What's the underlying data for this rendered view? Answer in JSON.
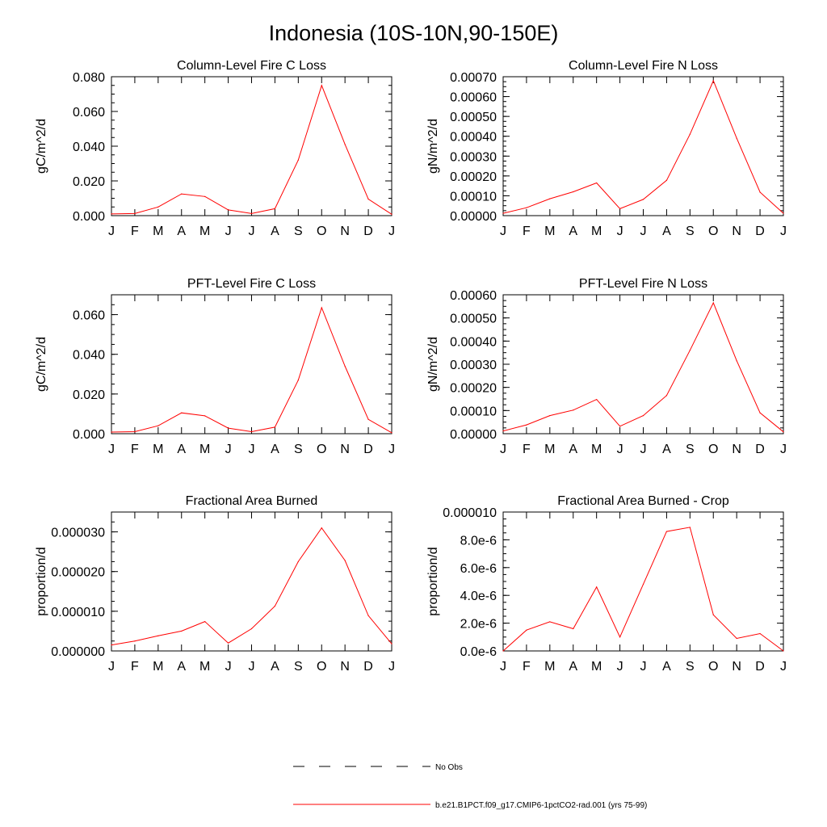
{
  "figure": {
    "title": "Indonesia (10S-10N,90-150E)",
    "legend": [
      {
        "label": "No Obs",
        "style": "dashed",
        "color": "#000000"
      },
      {
        "label": "b.e21.B1PCT.f09_g17.CMIP6-1pctCO2-rad.001 (yrs 75-99)",
        "style": "solid",
        "color": "#ff0000"
      }
    ]
  },
  "chart_data": [
    {
      "type": "line",
      "title": "Column-Level Fire C Loss",
      "ylabel": "gC/m^2/d",
      "categories": [
        "J",
        "F",
        "M",
        "A",
        "M",
        "J",
        "J",
        "A",
        "S",
        "O",
        "N",
        "D",
        "J"
      ],
      "ylim": [
        0,
        0.08
      ],
      "yticks": [
        "0.000",
        "0.020",
        "0.040",
        "0.060",
        "0.080"
      ],
      "yminor_per_major": 4,
      "line_color": "#ff0000",
      "series": [
        {
          "values": [
            0.001,
            0.0012,
            0.005,
            0.0125,
            0.011,
            0.0033,
            0.0012,
            0.004,
            0.032,
            0.075,
            0.041,
            0.0095,
            0.0008
          ]
        }
      ]
    },
    {
      "type": "line",
      "title": "Column-Level Fire N Loss",
      "ylabel": "gN/m^2/d",
      "categories": [
        "J",
        "F",
        "M",
        "A",
        "M",
        "J",
        "J",
        "A",
        "S",
        "O",
        "N",
        "D",
        "J"
      ],
      "ylim": [
        0,
        0.0007
      ],
      "yticks": [
        "0.00000",
        "0.00010",
        "0.00020",
        "0.00030",
        "0.00040",
        "0.00050",
        "0.00060",
        "0.00070"
      ],
      "yminor_per_major": 4,
      "line_color": "#ff0000",
      "series": [
        {
          "values": [
            1.2e-05,
            4e-05,
            8.5e-05,
            0.00012,
            0.000165,
            3.5e-05,
            8.2e-05,
            0.000178,
            0.00041,
            0.00068,
            0.00039,
            0.000118,
            1.2e-05
          ]
        }
      ]
    },
    {
      "type": "line",
      "title": "PFT-Level Fire C Loss",
      "ylabel": "gC/m^2/d",
      "categories": [
        "J",
        "F",
        "M",
        "A",
        "M",
        "J",
        "J",
        "A",
        "S",
        "O",
        "N",
        "D",
        "J"
      ],
      "ylim": [
        0,
        0.07
      ],
      "yticks": [
        "0.000",
        "0.020",
        "0.040",
        "0.060"
      ],
      "yminor_per_major": 4,
      "line_color": "#ff0000",
      "series": [
        {
          "values": [
            0.0008,
            0.001,
            0.004,
            0.0105,
            0.009,
            0.0028,
            0.001,
            0.0033,
            0.027,
            0.0635,
            0.034,
            0.0072,
            0.0005
          ]
        }
      ]
    },
    {
      "type": "line",
      "title": "PFT-Level Fire N Loss",
      "ylabel": "gN/m^2/d",
      "categories": [
        "J",
        "F",
        "M",
        "A",
        "M",
        "J",
        "J",
        "A",
        "S",
        "O",
        "N",
        "D",
        "J"
      ],
      "ylim": [
        0,
        0.0006
      ],
      "yticks": [
        "0.00000",
        "0.00010",
        "0.00020",
        "0.00030",
        "0.00040",
        "0.00050",
        "0.00060"
      ],
      "yminor_per_major": 4,
      "line_color": "#ff0000",
      "series": [
        {
          "values": [
            1.2e-05,
            3.8e-05,
            7.8e-05,
            0.000102,
            0.000148,
            3.2e-05,
            7.8e-05,
            0.000165,
            0.00036,
            0.000565,
            0.000315,
            9e-05,
            8e-06
          ]
        }
      ]
    },
    {
      "type": "line",
      "title": "Fractional Area Burned",
      "ylabel": "proportion/d",
      "categories": [
        "J",
        "F",
        "M",
        "A",
        "M",
        "J",
        "J",
        "A",
        "S",
        "O",
        "N",
        "D",
        "J"
      ],
      "ylim": [
        0,
        3.5e-05
      ],
      "yticks": [
        "0.000000",
        "0.000010",
        "0.000020",
        "0.000030"
      ],
      "yminor_per_major": 4,
      "line_color": "#ff0000",
      "series": [
        {
          "values": [
            1.5e-06,
            2.5e-06,
            3.8e-06,
            5e-06,
            7.4e-06,
            2e-06,
            5.6e-06,
            1.13e-05,
            2.25e-05,
            3.1e-05,
            2.28e-05,
            8.9e-06,
            1.8e-06
          ]
        }
      ]
    },
    {
      "type": "line",
      "title": "Fractional Area Burned - Crop",
      "ylabel": "proportion/d",
      "categories": [
        "J",
        "F",
        "M",
        "A",
        "M",
        "J",
        "J",
        "A",
        "S",
        "O",
        "N",
        "D",
        "J"
      ],
      "ylim": [
        0,
        1e-05
      ],
      "yticks": [
        "0.0e-6",
        "2.0e-6",
        "4.0e-6",
        "6.0e-6",
        "8.0e-6",
        "0.000010"
      ],
      "yminor_per_major": 4,
      "line_color": "#ff0000",
      "series": [
        {
          "values": [
            0.0,
            1.5e-06,
            2.1e-06,
            1.6e-06,
            4.6e-06,
            1e-06,
            4.8e-06,
            8.6e-06,
            8.9e-06,
            2.6e-06,
            9e-07,
            1.25e-06,
            0.0
          ]
        }
      ]
    }
  ]
}
